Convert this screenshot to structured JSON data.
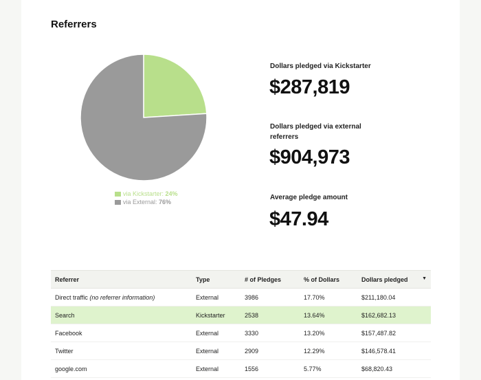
{
  "section_title": "Referrers",
  "colors": {
    "kickstarter": "#b8df8b",
    "external": "#9a9a9a",
    "highlight": "#dff3cd"
  },
  "chart_data": {
    "type": "pie",
    "slices": [
      {
        "label": "via Kickstarter:",
        "value": 24,
        "display": "24%"
      },
      {
        "label": "via External:",
        "value": 76,
        "display": "76%"
      }
    ]
  },
  "stats": [
    {
      "label": "Dollars pledged via Kickstarter",
      "value": "$287,819"
    },
    {
      "label": "Dollars pledged via external referrers",
      "value": "$904,973"
    },
    {
      "label": "Average pledge amount",
      "value": "$47.94"
    }
  ],
  "table": {
    "headers": [
      "Referrer",
      "Type",
      "# of Pledges",
      "% of Dollars",
      "Dollars pledged"
    ],
    "rows": [
      {
        "referrer": "Direct traffic",
        "note": "(no referrer information)",
        "type": "External",
        "pledges": "3986",
        "percent": "17.70%",
        "dollars": "$211,180.04"
      },
      {
        "referrer": "Search",
        "note": "",
        "type": "Kickstarter",
        "pledges": "2538",
        "percent": "13.64%",
        "dollars": "$162,682.13"
      },
      {
        "referrer": "Facebook",
        "note": "",
        "type": "External",
        "pledges": "3330",
        "percent": "13.20%",
        "dollars": "$157,487.82"
      },
      {
        "referrer": "Twitter",
        "note": "",
        "type": "External",
        "pledges": "2909",
        "percent": "12.29%",
        "dollars": "$146,578.41"
      },
      {
        "referrer": "google.com",
        "note": "",
        "type": "External",
        "pledges": "1556",
        "percent": "5.77%",
        "dollars": "$68,820.43"
      }
    ]
  }
}
